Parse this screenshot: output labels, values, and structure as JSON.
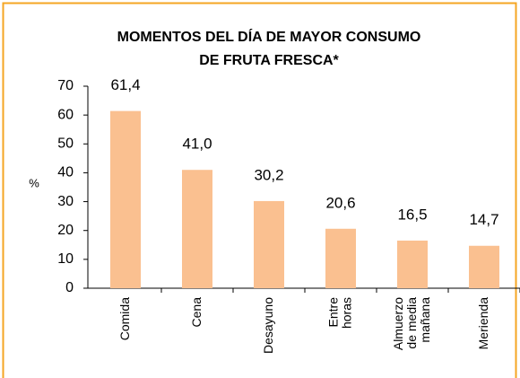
{
  "chart_data": {
    "type": "bar",
    "title": [
      "MOMENTOS DEL DÍA DE MAYOR CONSUMO",
      "DE FRUTA FRESCA*"
    ],
    "ylabel": "%",
    "categories": [
      "Comida",
      "Cena",
      "Desayuno",
      "Entre\nhoras",
      "Almuerzo\nde media\nmañana",
      "Merienda"
    ],
    "values": [
      61.4,
      41.0,
      30.2,
      20.6,
      16.5,
      14.7
    ],
    "value_labels": [
      "61,4",
      "41,0",
      "30,2",
      "20,6",
      "16,5",
      "14,7"
    ],
    "color": "#fac090",
    "ylim": [
      0,
      70
    ],
    "yticks": [
      0,
      10,
      20,
      30,
      40,
      50,
      60,
      70
    ],
    "grid": false
  }
}
